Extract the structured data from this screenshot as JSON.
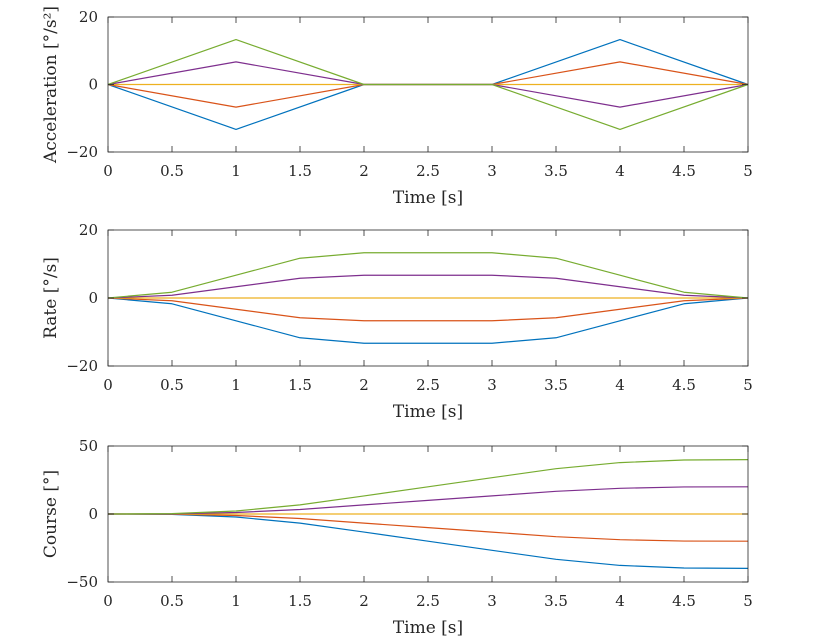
{
  "chart_data": [
    {
      "type": "line",
      "xlabel": "Time [s]",
      "ylabel": "Acceleration [°/s²]",
      "xlim": [
        0,
        5
      ],
      "ylim": [
        -20,
        20
      ],
      "xticks": [
        "0",
        "0.5",
        "1",
        "1.5",
        "2",
        "2.5",
        "3",
        "3.5",
        "4",
        "4.5",
        "5"
      ],
      "yticks": [
        "20",
        "0",
        "−20"
      ],
      "x": [
        0,
        1,
        2,
        3,
        4,
        5
      ],
      "series": [
        {
          "color": "#0072BD",
          "values": [
            0,
            -13.3,
            0,
            0,
            13.3,
            0
          ]
        },
        {
          "color": "#D95319",
          "values": [
            0,
            -6.7,
            0,
            0,
            6.7,
            0
          ]
        },
        {
          "color": "#EDB120",
          "values": [
            0,
            0,
            0,
            0,
            0,
            0
          ]
        },
        {
          "color": "#7E2F8E",
          "values": [
            0,
            6.7,
            0,
            0,
            -6.7,
            0
          ]
        },
        {
          "color": "#77AC30",
          "values": [
            0,
            13.3,
            0,
            0,
            -13.3,
            0
          ]
        }
      ]
    },
    {
      "type": "line",
      "xlabel": "Time [s]",
      "ylabel": "Rate [°/s]",
      "xlim": [
        0,
        5
      ],
      "ylim": [
        -20,
        20
      ],
      "xticks": [
        "0",
        "0.5",
        "1",
        "1.5",
        "2",
        "2.5",
        "3",
        "3.5",
        "4",
        "4.5",
        "5"
      ],
      "yticks": [
        "20",
        "0",
        "−20"
      ],
      "x": [
        0,
        0.5,
        1,
        1.5,
        2,
        2.5,
        3,
        3.5,
        4,
        4.5,
        5
      ],
      "series": [
        {
          "color": "#0072BD",
          "values": [
            0,
            -1.7,
            -6.7,
            -11.7,
            -13.3,
            -13.3,
            -13.3,
            -11.7,
            -6.7,
            -1.7,
            0
          ]
        },
        {
          "color": "#D95319",
          "values": [
            0,
            -0.8,
            -3.3,
            -5.8,
            -6.7,
            -6.7,
            -6.7,
            -5.8,
            -3.3,
            -0.8,
            0
          ]
        },
        {
          "color": "#EDB120",
          "values": [
            0,
            0,
            0,
            0,
            0,
            0,
            0,
            0,
            0,
            0,
            0
          ]
        },
        {
          "color": "#7E2F8E",
          "values": [
            0,
            0.8,
            3.3,
            5.8,
            6.7,
            6.7,
            6.7,
            5.8,
            3.3,
            0.8,
            0
          ]
        },
        {
          "color": "#77AC30",
          "values": [
            0,
            1.7,
            6.7,
            11.7,
            13.3,
            13.3,
            13.3,
            11.7,
            6.7,
            1.7,
            0
          ]
        }
      ]
    },
    {
      "type": "line",
      "xlabel": "Time [s]",
      "ylabel": "Course [°]",
      "xlim": [
        0,
        5
      ],
      "ylim": [
        -50,
        50
      ],
      "xticks": [
        "0",
        "0.5",
        "1",
        "1.5",
        "2",
        "2.5",
        "3",
        "3.5",
        "4",
        "4.5",
        "5"
      ],
      "yticks": [
        "50",
        "0",
        "−50"
      ],
      "x": [
        0,
        0.5,
        1,
        1.5,
        2,
        2.5,
        3,
        3.5,
        4,
        4.5,
        5
      ],
      "series": [
        {
          "color": "#0072BD",
          "values": [
            0,
            -0.3,
            -2.2,
            -6.7,
            -13.3,
            -20.0,
            -26.7,
            -33.3,
            -37.8,
            -39.7,
            -40.0
          ]
        },
        {
          "color": "#D95319",
          "values": [
            0,
            -0.1,
            -1.1,
            -3.3,
            -6.7,
            -10.0,
            -13.3,
            -16.7,
            -18.9,
            -19.9,
            -20.0
          ]
        },
        {
          "color": "#EDB120",
          "values": [
            0,
            0,
            0,
            0,
            0,
            0,
            0,
            0,
            0,
            0,
            0
          ]
        },
        {
          "color": "#7E2F8E",
          "values": [
            0,
            0.1,
            1.1,
            3.3,
            6.7,
            10.0,
            13.3,
            16.7,
            18.9,
            19.9,
            20.0
          ]
        },
        {
          "color": "#77AC30",
          "values": [
            0,
            0.3,
            2.2,
            6.7,
            13.3,
            20.0,
            26.7,
            33.3,
            37.8,
            39.7,
            40.0
          ]
        }
      ]
    }
  ]
}
